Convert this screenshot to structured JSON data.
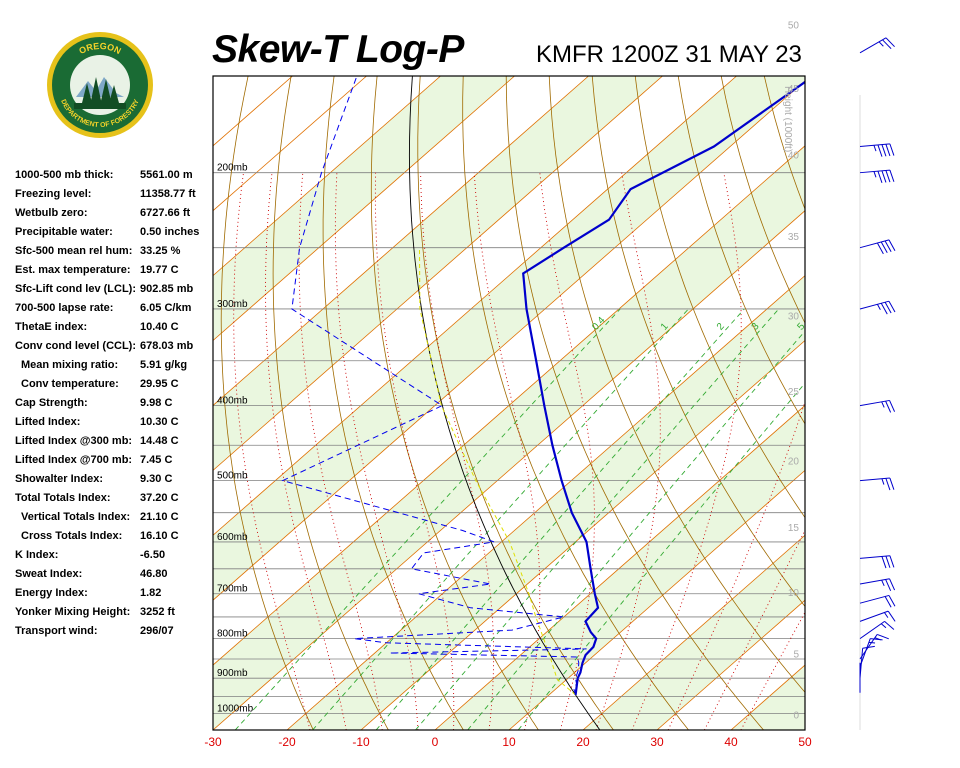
{
  "header": {
    "title": "Skew-T Log-P",
    "station": "KMFR 1200Z 31 MAY 23",
    "logo_text_top": "OREGON",
    "logo_text_bottom": "DEPARTMENT OF FORESTRY"
  },
  "indices": [
    {
      "label": "1000-500 mb thick:",
      "value": "5561.00 m",
      "indent": false
    },
    {
      "label": "Freezing level:",
      "value": "11358.77 ft",
      "indent": false
    },
    {
      "label": "Wetbulb zero:",
      "value": "6727.66 ft",
      "indent": false
    },
    {
      "label": "Precipitable water:",
      "value": "0.50 inches",
      "indent": false
    },
    {
      "label": "Sfc-500 mean rel hum:",
      "value": "33.25 %",
      "indent": false
    },
    {
      "label": "Est. max temperature:",
      "value": "19.77 C",
      "indent": false
    },
    {
      "label": "Sfc-Lift cond lev (LCL):",
      "value": "902.85 mb",
      "indent": false
    },
    {
      "label": "700-500 lapse rate:",
      "value": "6.05 C/km",
      "indent": false
    },
    {
      "label": "ThetaE index:",
      "value": "10.40 C",
      "indent": false
    },
    {
      "label": "Conv cond level (CCL):",
      "value": "678.03 mb",
      "indent": false
    },
    {
      "label": "Mean mixing ratio:",
      "value": "5.91 g/kg",
      "indent": true
    },
    {
      "label": "Conv temperature:",
      "value": "29.95 C",
      "indent": true
    },
    {
      "label": "Cap Strength:",
      "value": "9.98 C",
      "indent": false
    },
    {
      "label": "Lifted Index:",
      "value": "10.30 C",
      "indent": false
    },
    {
      "label": "Lifted Index @300 mb:",
      "value": "14.48 C",
      "indent": false
    },
    {
      "label": "Lifted Index @700 mb:",
      "value": "7.45 C",
      "indent": false
    },
    {
      "label": "Showalter Index:",
      "value": "9.30 C",
      "indent": false
    },
    {
      "label": "Total Totals Index:",
      "value": "37.20 C",
      "indent": false
    },
    {
      "label": "Vertical Totals Index:",
      "value": "21.10 C",
      "indent": true
    },
    {
      "label": "Cross Totals Index:",
      "value": "16.10 C",
      "indent": true
    },
    {
      "label": "K Index:",
      "value": "-6.50",
      "indent": false
    },
    {
      "label": "Sweat Index:",
      "value": "46.80",
      "indent": false
    },
    {
      "label": "Energy Index:",
      "value": "1.82",
      "indent": false
    },
    {
      "label": "Yonker Mixing Height:",
      "value": "3252 ft",
      "indent": false
    },
    {
      "label": "Transport wind:",
      "value": "296/07",
      "indent": false
    }
  ],
  "colors": {
    "temperature": "#0000cc",
    "dewpoint": "#0000ee",
    "parcel": "#e0e000",
    "isotherm": "#e07000",
    "dry_adiabat": "#a06a00",
    "moist_adiabat": "#cc0000",
    "mixing_ratio": "#33aa33",
    "isobar": "#808080",
    "height_label": "#aaaaaa",
    "temp_tick_label": "#dd0000",
    "band": "#eaf7df"
  },
  "chart_data": {
    "type": "line",
    "title": "Skew-T Log-P",
    "xlabel": "",
    "ylabel": "",
    "xlim": [
      -30,
      50
    ],
    "ylim": [
      1050,
      150
    ],
    "y_scale": "log",
    "x_ticks": [
      "-30",
      "-20",
      "-10",
      "0",
      "10",
      "20",
      "30",
      "40",
      "50"
    ],
    "pressure_levels": [
      {
        "p": 1000,
        "label": "1000mb"
      },
      {
        "p": 900,
        "label": "900mb"
      },
      {
        "p": 800,
        "label": "800mb"
      },
      {
        "p": 700,
        "label": "700mb"
      },
      {
        "p": 600,
        "label": "600mb"
      },
      {
        "p": 500,
        "label": "500mb"
      },
      {
        "p": 400,
        "label": "400mb"
      },
      {
        "p": 300,
        "label": "300mb"
      },
      {
        "p": 200,
        "label": "200mb"
      }
    ],
    "height_axis_label": "Height (1000ft)",
    "height_ticks": [
      {
        "label": "0",
        "p": 1005
      },
      {
        "label": "5",
        "p": 839
      },
      {
        "label": "10",
        "p": 698
      },
      {
        "label": "15",
        "p": 576
      },
      {
        "label": "20",
        "p": 472
      },
      {
        "label": "25",
        "p": 384
      },
      {
        "label": "30",
        "p": 307
      },
      {
        "label": "35",
        "p": 242
      },
      {
        "label": "40",
        "p": 190
      },
      {
        "label": "45",
        "p": 156
      },
      {
        "label": "50",
        "p": 129
      }
    ],
    "mixing_ratio_labels": [
      "0.4",
      "1",
      "2",
      "3",
      "5",
      "8"
    ],
    "series": [
      {
        "name": "Temperature",
        "points": [
          {
            "p": 946,
            "t": 13.6
          },
          {
            "p": 900,
            "t": 11.3
          },
          {
            "p": 885,
            "t": 10.8
          },
          {
            "p": 860,
            "t": 9.6
          },
          {
            "p": 840,
            "t": 8.8
          },
          {
            "p": 820,
            "t": 8.6
          },
          {
            "p": 800,
            "t": 7.7
          },
          {
            "p": 785,
            "t": 6.0
          },
          {
            "p": 760,
            "t": 3.6
          },
          {
            "p": 730,
            "t": 3.2
          },
          {
            "p": 700,
            "t": 0.6
          },
          {
            "p": 650,
            "t": -3.8
          },
          {
            "p": 600,
            "t": -8.5
          },
          {
            "p": 550,
            "t": -15.0
          },
          {
            "p": 500,
            "t": -21.3
          },
          {
            "p": 450,
            "t": -28.0
          },
          {
            "p": 400,
            "t": -35.2
          },
          {
            "p": 350,
            "t": -43.2
          },
          {
            "p": 300,
            "t": -52.5
          },
          {
            "p": 270,
            "t": -58.4
          },
          {
            "p": 250,
            "t": -56.9
          },
          {
            "p": 230,
            "t": -55.1
          },
          {
            "p": 210,
            "t": -56.9
          },
          {
            "p": 185,
            "t": -52.2
          },
          {
            "p": 150,
            "t": -49.6
          },
          {
            "p": 134,
            "t": -47.8
          }
        ]
      },
      {
        "name": "Dewpoint",
        "points": [
          {
            "p": 946,
            "t": 13.6
          },
          {
            "p": 930,
            "t": 12.5
          },
          {
            "p": 915,
            "t": 12.0
          },
          {
            "p": 900,
            "t": 11.0
          },
          {
            "p": 880,
            "t": 10.2
          },
          {
            "p": 860,
            "t": 9.1
          },
          {
            "p": 845,
            "t": 8.0
          },
          {
            "p": 835,
            "t": -18.0
          },
          {
            "p": 825,
            "t": 8.0
          },
          {
            "p": 810,
            "t": -20.0
          },
          {
            "p": 800,
            "t": -25.0
          },
          {
            "p": 780,
            "t": -5.0
          },
          {
            "p": 750,
            "t": 0.0
          },
          {
            "p": 730,
            "t": -14.0
          },
          {
            "p": 700,
            "t": -23.2
          },
          {
            "p": 680,
            "t": -15.0
          },
          {
            "p": 650,
            "t": -28.0
          },
          {
            "p": 620,
            "t": -28.8
          },
          {
            "p": 600,
            "t": -21.0
          },
          {
            "p": 580,
            "t": -27.0
          },
          {
            "p": 500,
            "t": -59.0
          },
          {
            "p": 400,
            "t": -49.0
          },
          {
            "p": 300,
            "t": -84.2
          },
          {
            "p": 250,
            "t": -92.6
          },
          {
            "p": 200,
            "t": -101.2
          },
          {
            "p": 150,
            "t": -111.3
          },
          {
            "p": 134,
            "t": -115.3
          }
        ]
      },
      {
        "name": "Parcel",
        "points": [
          {
            "p": 946,
            "t": 13.6
          },
          {
            "p": 903,
            "t": 8.7
          },
          {
            "p": 850,
            "t": 4.7
          },
          {
            "p": 800,
            "t": 0.6
          },
          {
            "p": 750,
            "t": -3.8
          },
          {
            "p": 700,
            "t": -8.3
          },
          {
            "p": 600,
            "t": -18.9
          },
          {
            "p": 500,
            "t": -32.9
          },
          {
            "p": 400,
            "t": -49.1
          },
          {
            "p": 300,
            "t": -66.9
          },
          {
            "p": 250,
            "t": -76.4
          }
        ]
      }
    ],
    "wind_barbs": [
      {
        "p": 940,
        "dir": 180,
        "kt": 0
      },
      {
        "p": 900,
        "dir": 185,
        "kt": 10
      },
      {
        "p": 870,
        "dir": 200,
        "kt": 15
      },
      {
        "p": 850,
        "dir": 215,
        "kt": 15
      },
      {
        "p": 800,
        "dir": 235,
        "kt": 15
      },
      {
        "p": 760,
        "dir": 250,
        "kt": 15
      },
      {
        "p": 720,
        "dir": 255,
        "kt": 20
      },
      {
        "p": 680,
        "dir": 260,
        "kt": 25
      },
      {
        "p": 630,
        "dir": 265,
        "kt": 30
      },
      {
        "p": 500,
        "dir": 265,
        "kt": 25
      },
      {
        "p": 400,
        "dir": 260,
        "kt": 25
      },
      {
        "p": 300,
        "dir": 255,
        "kt": 35
      },
      {
        "p": 250,
        "dir": 255,
        "kt": 40
      },
      {
        "p": 200,
        "dir": 265,
        "kt": 45
      },
      {
        "p": 185,
        "dir": 265,
        "kt": 45
      },
      {
        "p": 140,
        "dir": 240,
        "kt": 25
      }
    ]
  }
}
